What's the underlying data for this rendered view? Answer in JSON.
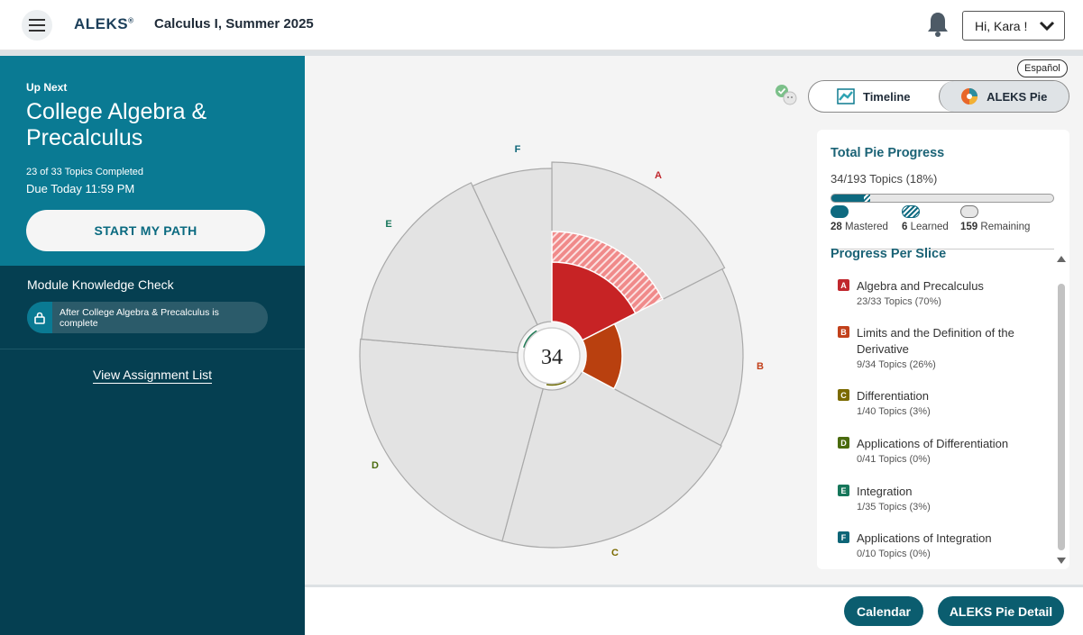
{
  "header": {
    "logo": "ALEKS",
    "logo_mark": "®",
    "course_title": "Calculus I, Summer 2025",
    "user_greeting": "Hi, Kara !"
  },
  "up_next": {
    "label": "Up Next",
    "title": "College Algebra & Precalculus",
    "topics_completed": "23 of 33 Topics Completed",
    "due": "Due Today 11:59 PM",
    "start_button": "START MY PATH"
  },
  "module_check": {
    "title": "Module Knowledge Check",
    "lock_message": "After College Algebra & Precalculus is complete"
  },
  "view_assignment_list": "View Assignment List",
  "language_button": "Español",
  "view_toggle": {
    "timeline": "Timeline",
    "pie": "ALEKS Pie",
    "active": "pie"
  },
  "pie": {
    "center_value": "34",
    "slice_labels": [
      "A",
      "B",
      "C",
      "D",
      "E",
      "F"
    ]
  },
  "total_progress": {
    "title": "Total Pie Progress",
    "summary": "34/193 Topics (18%)",
    "mastered_count": "28",
    "mastered_label": "Mastered",
    "learned_count": "6",
    "learned_label": "Learned",
    "remaining_count": "159",
    "remaining_label": "Remaining",
    "mastered_fraction": 0.145,
    "learned_fraction": 0.031
  },
  "progress_per_slice": {
    "title": "Progress Per Slice",
    "slices": [
      {
        "letter": "A",
        "name": "Algebra and Precalculus",
        "topics": "23/33 Topics (70%)",
        "color": "#c0272d"
      },
      {
        "letter": "B",
        "name": "Limits and the Definition of the Derivative",
        "topics": "9/34 Topics (26%)",
        "color": "#c2411b"
      },
      {
        "letter": "C",
        "name": "Differentiation",
        "topics": "1/40 Topics (3%)",
        "color": "#7b6a00"
      },
      {
        "letter": "D",
        "name": "Applications of Differentiation",
        "topics": "0/41 Topics (0%)",
        "color": "#4a6b0e"
      },
      {
        "letter": "E",
        "name": "Integration",
        "topics": "1/35 Topics (3%)",
        "color": "#16765a"
      },
      {
        "letter": "F",
        "name": "Applications of Integration",
        "topics": "0/10 Topics (0%)",
        "color": "#0d6577"
      }
    ]
  },
  "bottom_buttons": {
    "calendar": "Calendar",
    "pie_detail": "ALEKS Pie Detail"
  }
}
